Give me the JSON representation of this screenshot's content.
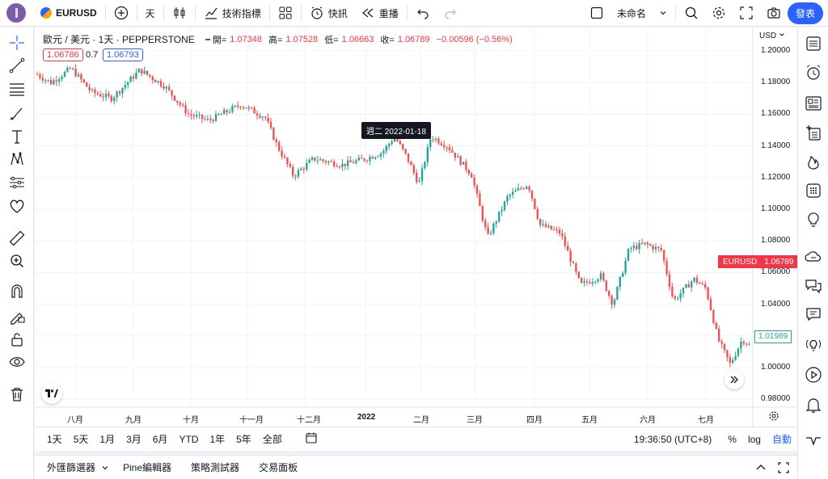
{
  "topbar": {
    "symbol": "EURUSD",
    "interval": "天",
    "indicators_label": "技術指標",
    "alert_label": "快訊",
    "replay_label": "重播",
    "layout_name": "未命名",
    "publish_label": "發表"
  },
  "legend": {
    "title": "歐元 / 美元 · 1天 · PEPPERSTONE",
    "open_label": "開=",
    "open": "1.07348",
    "high_label": "高=",
    "high": "1.07528",
    "low_label": "低=",
    "low": "1.06663",
    "close_label": "收=",
    "close": "1.06789",
    "change": "−0.00596 (−0.56%)",
    "sell_price": "1.06786",
    "spread": "0.7",
    "buy_price": "1.06793"
  },
  "price_axis": {
    "currency": "USD",
    "ticks": [
      "1.20000",
      "1.18000",
      "1.16000",
      "1.14000",
      "1.12000",
      "1.10000",
      "1.08000",
      "1.06000",
      "1.04000",
      "1.02000",
      "1.00000",
      "0.98000"
    ],
    "current_label": "EURUSD",
    "current_value": "1.06789",
    "marker_value": "1.01989"
  },
  "time_axis": {
    "labels": [
      "八月",
      "九月",
      "十月",
      "十一月",
      "十二月",
      "2022",
      "二月",
      "三月",
      "四月",
      "五月",
      "六月",
      "七月"
    ],
    "tooltip": "週二 2022-01-18"
  },
  "timebar": {
    "ranges": [
      "1天",
      "5天",
      "1月",
      "3月",
      "6月",
      "YTD",
      "1年",
      "5年",
      "全部"
    ],
    "clock": "19:36:50 (UTC+8)",
    "percent": "%",
    "log": "log",
    "auto": "自動"
  },
  "bottombar": {
    "tabs": [
      "外匯篩選器",
      "Pine編輯器",
      "策略測試器",
      "交易面板"
    ]
  },
  "colors": {
    "up": "#26a69a",
    "down": "#ef5350",
    "accent": "#2962ff"
  }
}
